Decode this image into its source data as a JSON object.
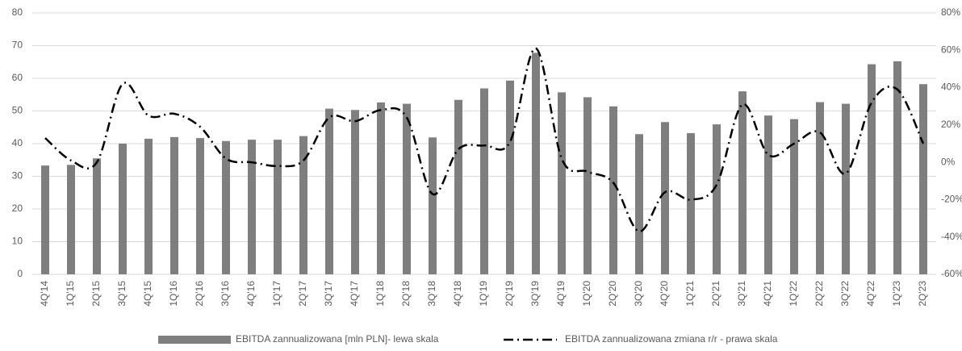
{
  "chart_data": {
    "type": "bar-line",
    "categories": [
      "4Q'14",
      "1Q'15",
      "2Q'15",
      "3Q'15",
      "4Q'15",
      "1Q'16",
      "2Q'16",
      "3Q'16",
      "4Q'16",
      "1Q'17",
      "2Q'17",
      "3Q'17",
      "4Q'17",
      "1Q'18",
      "2Q'18",
      "3Q'18",
      "4Q'18",
      "1Q'19",
      "2Q'19",
      "3Q'19",
      "4Q'19",
      "1Q'20",
      "2Q'20",
      "3Q'20",
      "4Q'20",
      "1Q'21",
      "2Q'21",
      "3Q'21",
      "4Q'21",
      "1Q'22",
      "2Q'22",
      "3Q'22",
      "4Q'22",
      "1Q'23",
      "2Q'23"
    ],
    "series": [
      {
        "name": "EBITDA zannualizowana [mln PLN]- lewa skala",
        "type": "bar",
        "color": "#7f7f7f",
        "values": [
          33.3,
          33.5,
          35.5,
          40,
          41.5,
          42,
          41.7,
          40.8,
          41.2,
          41.2,
          42.3,
          50.7,
          50.3,
          52.6,
          52.2,
          41.9,
          53.4,
          56.9,
          59.3,
          67.8,
          55.7,
          54.2,
          51.4,
          42.9,
          46.6,
          43.2,
          45.9,
          56,
          48.6,
          47.5,
          52.7,
          52.2,
          64.3,
          65.2,
          58.2
        ]
      },
      {
        "name": "EBITDA zannualizowana zmiana r/r - prawa skala",
        "type": "line",
        "axis": "y2",
        "color": "#000000",
        "values": [
          13,
          1,
          0,
          42,
          25,
          26,
          19,
          2,
          0,
          -2,
          1,
          24,
          22,
          28,
          24,
          -17,
          7,
          9,
          11,
          61,
          2,
          -5,
          -11,
          -37,
          -16,
          -20,
          -12,
          31,
          4,
          10,
          16,
          -6,
          32,
          39,
          10
        ]
      }
    ],
    "ylim": [
      0,
      80
    ],
    "yticks": [
      0,
      10,
      20,
      30,
      40,
      50,
      60,
      70,
      80
    ],
    "y2lim": [
      -60,
      80
    ],
    "y2ticks": [
      {
        "value": -60,
        "label": "-60%"
      },
      {
        "value": -40,
        "label": "-40%"
      },
      {
        "value": -20,
        "label": "-20%"
      },
      {
        "value": 0,
        "label": "0%"
      },
      {
        "value": 20,
        "label": "20%"
      },
      {
        "value": 40,
        "label": "40%"
      },
      {
        "value": 60,
        "label": "60%"
      },
      {
        "value": 80,
        "label": "80%"
      }
    ],
    "grid": true,
    "legend": "bottom"
  }
}
